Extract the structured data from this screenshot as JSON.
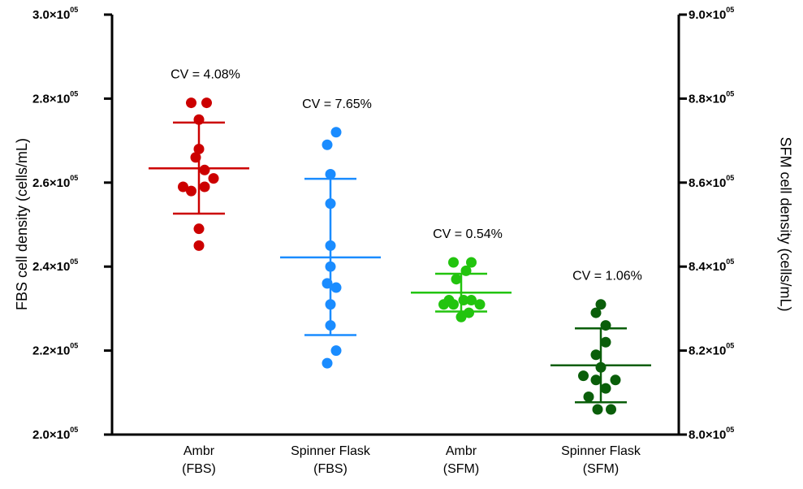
{
  "chart_data": {
    "type": "scatter",
    "subtype": "dot-plot-with-mean-and-sd",
    "ylabel_left": "FBS cell density (cells/mL)",
    "ylabel_right": "SFM cell density (cells/mL)",
    "ylim_left": [
      200000,
      300000
    ],
    "ylim_right": [
      800000,
      900000
    ],
    "yticks_left": [
      {
        "mant": "2.0",
        "exp": "05",
        "value": 200000
      },
      {
        "mant": "2.2",
        "exp": "05",
        "value": 220000
      },
      {
        "mant": "2.4",
        "exp": "05",
        "value": 240000
      },
      {
        "mant": "2.6",
        "exp": "05",
        "value": 260000
      },
      {
        "mant": "2.8",
        "exp": "05",
        "value": 280000
      },
      {
        "mant": "3.0",
        "exp": "05",
        "value": 300000
      }
    ],
    "yticks_right": [
      {
        "mant": "8.0",
        "exp": "05",
        "value": 800000
      },
      {
        "mant": "8.2",
        "exp": "05",
        "value": 820000
      },
      {
        "mant": "8.4",
        "exp": "05",
        "value": 840000
      },
      {
        "mant": "8.6",
        "exp": "05",
        "value": 860000
      },
      {
        "mant": "8.8",
        "exp": "05",
        "value": 880000
      },
      {
        "mant": "9.0",
        "exp": "05",
        "value": 900000
      }
    ],
    "times_sign": "×10",
    "grid": false,
    "groups": [
      {
        "label_line1": "Ambr",
        "label_line2": "(FBS)",
        "axis": "left",
        "color": "#cc0000",
        "cv": "CV = 4.08%",
        "mean": 263400,
        "sd_upper": 274300,
        "sd_lower": 252600,
        "points": [
          {
            "x": -0.19,
            "y": 279000
          },
          {
            "x": 0.19,
            "y": 279000
          },
          {
            "x": 0.0,
            "y": 275000
          },
          {
            "x": 0.0,
            "y": 268000
          },
          {
            "x": -0.08,
            "y": 266000
          },
          {
            "x": 0.14,
            "y": 263000
          },
          {
            "x": 0.36,
            "y": 261000
          },
          {
            "x": -0.39,
            "y": 259000
          },
          {
            "x": 0.14,
            "y": 259000
          },
          {
            "x": -0.19,
            "y": 258000
          },
          {
            "x": 0.0,
            "y": 249000
          },
          {
            "x": 0.0,
            "y": 245000
          }
        ]
      },
      {
        "label_line1": "Spinner Flask",
        "label_line2": "(FBS)",
        "axis": "left",
        "color": "#1a8cff",
        "cv": "CV = 7.65%",
        "mean": 242200,
        "sd_upper": 260900,
        "sd_lower": 223700,
        "points": [
          {
            "x": 0.14,
            "y": 272000
          },
          {
            "x": -0.08,
            "y": 269000
          },
          {
            "x": 0.0,
            "y": 262000
          },
          {
            "x": 0.0,
            "y": 255000
          },
          {
            "x": 0.0,
            "y": 245000
          },
          {
            "x": 0.0,
            "y": 240000
          },
          {
            "x": -0.08,
            "y": 236000
          },
          {
            "x": 0.14,
            "y": 235000
          },
          {
            "x": 0.0,
            "y": 231000
          },
          {
            "x": 0.0,
            "y": 226000
          },
          {
            "x": 0.14,
            "y": 220000
          },
          {
            "x": -0.08,
            "y": 217000
          }
        ]
      },
      {
        "label_line1": "Ambr",
        "label_line2": "(SFM)",
        "axis": "right",
        "color": "#22c40e",
        "cv": "CV = 0.54%",
        "mean": 833800,
        "sd_upper": 838300,
        "sd_lower": 829300,
        "points": [
          {
            "x": -0.19,
            "y": 841000
          },
          {
            "x": 0.25,
            "y": 841000
          },
          {
            "x": 0.12,
            "y": 839000
          },
          {
            "x": -0.12,
            "y": 837000
          },
          {
            "x": -0.3,
            "y": 832000
          },
          {
            "x": 0.06,
            "y": 832000
          },
          {
            "x": 0.25,
            "y": 832000
          },
          {
            "x": -0.43,
            "y": 831000
          },
          {
            "x": -0.19,
            "y": 831000
          },
          {
            "x": 0.46,
            "y": 831000
          },
          {
            "x": 0.19,
            "y": 829000
          },
          {
            "x": 0.0,
            "y": 828000
          }
        ]
      },
      {
        "label_line1": "Spinner Flask",
        "label_line2": "(SFM)",
        "axis": "right",
        "color": "#0a5e0a",
        "cv": "CV = 1.06%",
        "mean": 816500,
        "sd_upper": 825300,
        "sd_lower": 807700,
        "points": [
          {
            "x": 0.0,
            "y": 831000
          },
          {
            "x": -0.12,
            "y": 829000
          },
          {
            "x": 0.12,
            "y": 826000
          },
          {
            "x": 0.12,
            "y": 822000
          },
          {
            "x": -0.12,
            "y": 819000
          },
          {
            "x": 0.0,
            "y": 816000
          },
          {
            "x": -0.43,
            "y": 814000
          },
          {
            "x": -0.12,
            "y": 813000
          },
          {
            "x": 0.36,
            "y": 813000
          },
          {
            "x": -0.3,
            "y": 809000
          },
          {
            "x": 0.12,
            "y": 811000
          },
          {
            "x": -0.08,
            "y": 806000
          },
          {
            "x": 0.25,
            "y": 806000
          }
        ]
      }
    ]
  }
}
